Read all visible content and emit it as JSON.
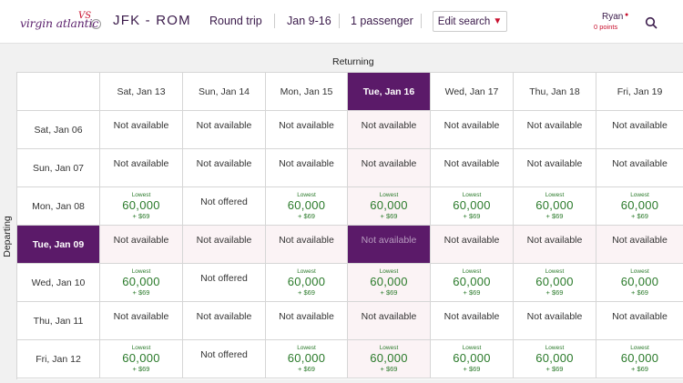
{
  "header": {
    "logo_text": "virgin atlantic",
    "logo_flag": "VS",
    "route": "JFK - ROM",
    "trip_type": "Round trip",
    "dates": "Jan 9-16",
    "passengers": "1 passenger",
    "edit_label": "Edit search",
    "user_name": "Ryan",
    "user_points": "0 points"
  },
  "grid": {
    "returning_label": "Returning",
    "departing_label": "Departing",
    "columns": [
      "Sat, Jan 13",
      "Sun, Jan 14",
      "Mon, Jan 15",
      "Tue, Jan 16",
      "Wed, Jan 17",
      "Thu, Jan 18",
      "Fri, Jan 19"
    ],
    "rows": [
      "Sat, Jan 06",
      "Sun, Jan 07",
      "Mon, Jan 08",
      "Tue, Jan 09",
      "Wed, Jan 10",
      "Thu, Jan 11",
      "Fri, Jan 12"
    ],
    "selected_column": "Tue, Jan 16",
    "selected_row": "Tue, Jan 09",
    "na_text": "Not available",
    "no_offer_text": "Not offered",
    "lowest_label": "Lowest",
    "miles": "60,000",
    "fee": "+ $69",
    "cells": [
      [
        "na",
        "na",
        "na",
        "na",
        "na",
        "na",
        "na"
      ],
      [
        "na",
        "na",
        "na",
        "na",
        "na",
        "na",
        "na"
      ],
      [
        "price",
        "no",
        "price",
        "price",
        "price",
        "price",
        "price"
      ],
      [
        "na",
        "na",
        "na",
        "na",
        "na",
        "na",
        "na"
      ],
      [
        "price",
        "no",
        "price",
        "price",
        "price",
        "price",
        "price"
      ],
      [
        "na",
        "na",
        "na",
        "na",
        "na",
        "na",
        "na"
      ],
      [
        "price",
        "no",
        "price",
        "price",
        "price",
        "price",
        "price"
      ]
    ]
  },
  "colors": {
    "brand_purple": "#5b1a69",
    "accent_red": "#c8102e",
    "price_green": "#2a7a2a"
  }
}
